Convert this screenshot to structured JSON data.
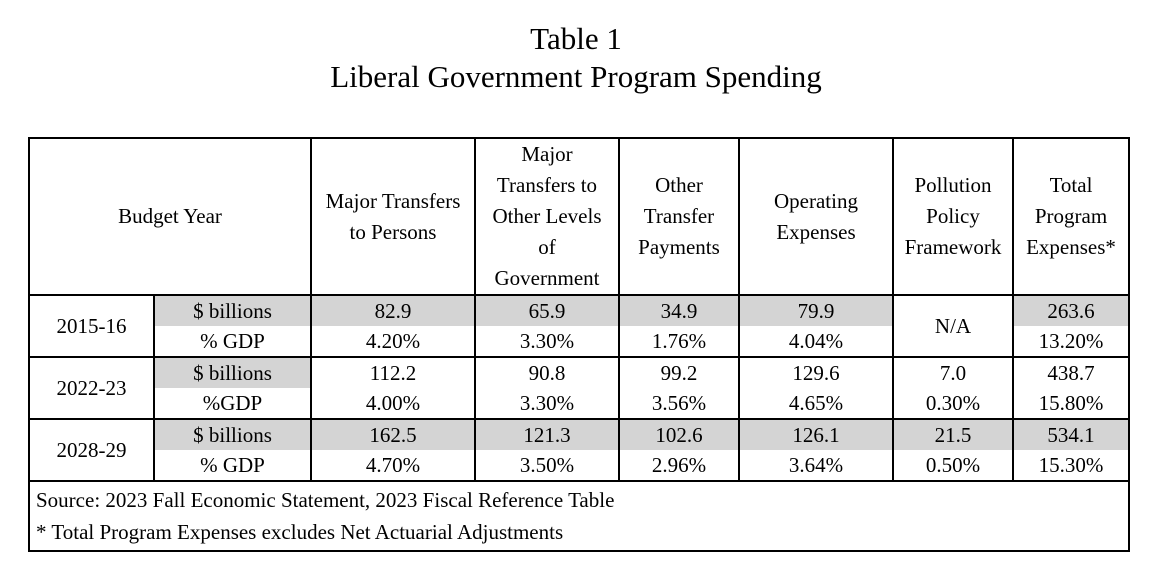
{
  "title": {
    "line1": "Table 1",
    "line2": "Liberal Government Program Spending"
  },
  "headers": {
    "budget_year": "Budget Year",
    "col1": [
      "Major Transfers",
      "to Persons"
    ],
    "col2": [
      "Major",
      "Transfers to",
      "Other Levels",
      "of",
      "Government"
    ],
    "col3": [
      "Other",
      "Transfer",
      "Payments"
    ],
    "col4": [
      "Operating",
      "Expenses"
    ],
    "col5": [
      "Pollution",
      "Policy",
      "Framework"
    ],
    "col6": [
      "Total",
      "Program",
      "Expenses*"
    ]
  },
  "rows": [
    {
      "year": "2015-16",
      "billions_label": "$ billions",
      "billions": [
        "82.9",
        "65.9",
        "34.9",
        "79.9",
        "263.6"
      ],
      "gdp_label": "% GDP",
      "gdp": [
        "4.20%",
        "3.30%",
        "1.76%",
        "4.04%",
        "13.20%"
      ],
      "pollution_merged": "N/A"
    },
    {
      "year": "2022-23",
      "billions_label": "$ billions",
      "billions": [
        "112.2",
        "90.8",
        "99.2",
        "129.6",
        "7.0",
        "438.7"
      ],
      "gdp_label": "%GDP",
      "gdp": [
        "4.00%",
        "3.30%",
        "3.56%",
        "4.65%",
        "0.30%",
        "15.80%"
      ]
    },
    {
      "year": "2028-29",
      "billions_label": "$ billions",
      "billions": [
        "162.5",
        "121.3",
        "102.6",
        "126.1",
        "21.5",
        "534.1"
      ],
      "gdp_label": "% GDP",
      "gdp": [
        "4.70%",
        "3.50%",
        "2.96%",
        "3.64%",
        "0.50%",
        "15.30%"
      ]
    }
  ],
  "notes": {
    "source": "Source: 2023 Fall Economic Statement, 2023 Fiscal Reference Table",
    "footnote": "* Total Program Expenses excludes Net Actuarial Adjustments"
  },
  "colors": {
    "shade": "#d4d4d4",
    "border": "#000000"
  }
}
